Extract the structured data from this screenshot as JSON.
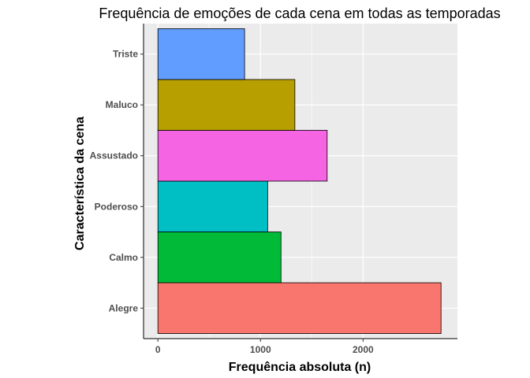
{
  "chart_data": {
    "type": "bar",
    "orientation": "horizontal",
    "title": "Frequência de emoções de cada cena em todas as temporadas",
    "xlabel": "Frequência absoluta (n)",
    "ylabel": "Característica da cena",
    "categories": [
      "Alegre",
      "Calmo",
      "Poderoso",
      "Assustado",
      "Maluco",
      "Triste"
    ],
    "values": [
      2760,
      1200,
      1070,
      1650,
      1335,
      845
    ],
    "colors": [
      "#F8766D",
      "#00BA38",
      "#00BFC4",
      "#F564E3",
      "#B79F00",
      "#619CFF"
    ],
    "xlim": [
      -140,
      2920
    ],
    "xticks": [
      0,
      1000,
      2000
    ],
    "xtick_labels": [
      "0",
      "1000",
      "2000"
    ],
    "grid": true,
    "panel_background": "#EBEBEB",
    "grid_color": "#FFFFFF",
    "bar_outline": "#000000"
  }
}
